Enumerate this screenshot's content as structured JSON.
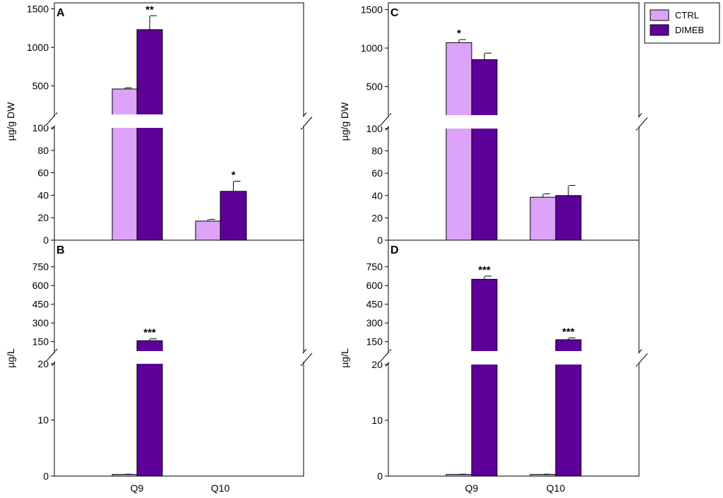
{
  "colors": {
    "ctrl": "#dda3f8",
    "dimeb": "#5c0099",
    "axis": "#000000",
    "background": "#ffffff"
  },
  "legend": {
    "entries": [
      {
        "label": "CTRL",
        "color": "#dda3f8"
      },
      {
        "label": "DIMEB",
        "color": "#5c0099"
      }
    ],
    "placement": "top-right"
  },
  "chart_data": [
    {
      "id": "A",
      "type": "bar",
      "panel_label": "A",
      "ylabel": "µg/g DW",
      "categories": [
        "Q9",
        "Q10"
      ],
      "x_tick_labels": [
        "",
        ""
      ],
      "broken_axis": true,
      "y_lower_range": [
        0,
        100
      ],
      "y_lower_ticks": [
        "0",
        "20",
        "40",
        "60",
        "80",
        "100"
      ],
      "y_upper_range": [
        130,
        1550
      ],
      "y_upper_ticks": [
        "500",
        "1000",
        "1500"
      ],
      "series": [
        {
          "name": "CTRL",
          "values": [
            460,
            17
          ],
          "errors": [
            15,
            1.5
          ],
          "significance": [
            "",
            ""
          ]
        },
        {
          "name": "DIMEB",
          "values": [
            1230,
            43.5
          ],
          "errors": [
            180,
            9
          ],
          "significance": [
            "**",
            "*"
          ]
        }
      ]
    },
    {
      "id": "B",
      "type": "bar",
      "panel_label": "B",
      "ylabel": "µg/L",
      "categories": [
        "Q9",
        "Q10"
      ],
      "x_tick_labels": [
        "Q9",
        "Q10"
      ],
      "broken_axis": true,
      "y_lower_range": [
        0,
        20
      ],
      "y_lower_ticks": [
        "0",
        "10",
        "20"
      ],
      "y_upper_range": [
        75,
        850
      ],
      "y_upper_ticks": [
        "150",
        "300",
        "450",
        "600",
        "750"
      ],
      "series": [
        {
          "name": "CTRL",
          "values": [
            0.3,
            0
          ],
          "errors": [
            0.05,
            0
          ],
          "significance": [
            "",
            ""
          ]
        },
        {
          "name": "DIMEB",
          "values": [
            158,
            0
          ],
          "errors": [
            15,
            0
          ],
          "significance": [
            "***",
            ""
          ]
        }
      ]
    },
    {
      "id": "C",
      "type": "bar",
      "panel_label": "C",
      "ylabel": "µg/g DW",
      "categories": [
        "Q9",
        "Q10"
      ],
      "x_tick_labels": [
        "",
        ""
      ],
      "broken_axis": true,
      "y_lower_range": [
        0,
        100
      ],
      "y_lower_ticks": [
        "0",
        "20",
        "40",
        "60",
        "80",
        "100"
      ],
      "y_upper_range": [
        130,
        1550
      ],
      "y_upper_ticks": [
        "500",
        "1000",
        "1500"
      ],
      "series": [
        {
          "name": "CTRL",
          "values": [
            1070,
            38.5
          ],
          "errors": [
            40,
            3
          ],
          "significance": [
            "*",
            ""
          ]
        },
        {
          "name": "DIMEB",
          "values": [
            850,
            40
          ],
          "errors": [
            85,
            9
          ],
          "significance": [
            "",
            ""
          ]
        }
      ]
    },
    {
      "id": "D",
      "type": "bar",
      "panel_label": "D",
      "ylabel": "µg/L",
      "categories": [
        "Q9",
        "Q10"
      ],
      "x_tick_labels": [
        "Q9",
        "Q10"
      ],
      "broken_axis": true,
      "y_lower_range": [
        0,
        20
      ],
      "y_lower_ticks": [
        "0",
        "10",
        "20"
      ],
      "y_upper_range": [
        75,
        850
      ],
      "y_upper_ticks": [
        "150",
        "300",
        "450",
        "600",
        "750"
      ],
      "series": [
        {
          "name": "CTRL",
          "values": [
            0.3,
            0.3
          ],
          "errors": [
            0.05,
            0.05
          ],
          "significance": [
            "",
            ""
          ]
        },
        {
          "name": "DIMEB",
          "values": [
            650,
            166
          ],
          "errors": [
            25,
            15
          ],
          "significance": [
            "***",
            "***"
          ]
        }
      ]
    }
  ]
}
